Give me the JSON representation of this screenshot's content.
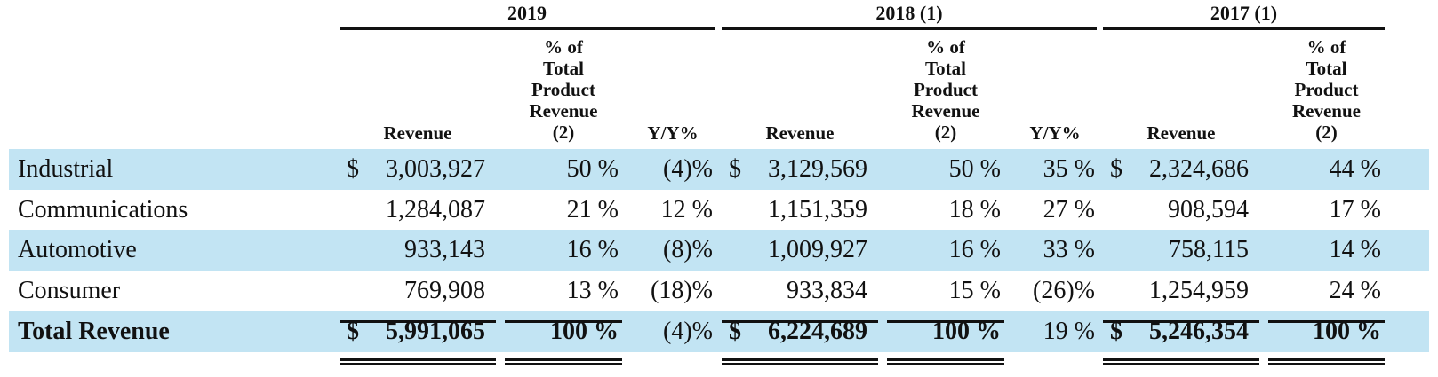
{
  "years": [
    {
      "label": "2019"
    },
    {
      "label": "2018 (1)"
    },
    {
      "label": "2017 (1)"
    }
  ],
  "headers": {
    "revenue": "Revenue",
    "pct_lines": [
      "% of",
      "Total",
      "Product",
      "Revenue",
      "(2)"
    ],
    "yy": "Y/Y%"
  },
  "rows": [
    {
      "label": "Industrial",
      "shaded": true,
      "bold": false,
      "c2019": {
        "dollar": "$",
        "rev": "3,003,927",
        "pct": "50 %",
        "yy": "(4)%"
      },
      "c2018": {
        "dollar": "$",
        "rev": "3,129,569",
        "pct": "50 %",
        "yy": "35 %"
      },
      "c2017": {
        "dollar": "$",
        "rev": "2,324,686",
        "pct": "44 %"
      }
    },
    {
      "label": "Communications",
      "shaded": false,
      "bold": false,
      "c2019": {
        "dollar": "",
        "rev": "1,284,087",
        "pct": "21 %",
        "yy": "12 %"
      },
      "c2018": {
        "dollar": "",
        "rev": "1,151,359",
        "pct": "18 %",
        "yy": "27 %"
      },
      "c2017": {
        "dollar": "",
        "rev": "908,594",
        "pct": "17 %"
      }
    },
    {
      "label": "Automotive",
      "shaded": true,
      "bold": false,
      "c2019": {
        "dollar": "",
        "rev": "933,143",
        "pct": "16 %",
        "yy": "(8)%"
      },
      "c2018": {
        "dollar": "",
        "rev": "1,009,927",
        "pct": "16 %",
        "yy": "33 %"
      },
      "c2017": {
        "dollar": "",
        "rev": "758,115",
        "pct": "14 %"
      }
    },
    {
      "label": "Consumer",
      "shaded": false,
      "bold": false,
      "c2019": {
        "dollar": "",
        "rev": "769,908",
        "pct": "13 %",
        "yy": "(18)%"
      },
      "c2018": {
        "dollar": "",
        "rev": "933,834",
        "pct": "15 %",
        "yy": "(26)%"
      },
      "c2017": {
        "dollar": "",
        "rev": "1,254,959",
        "pct": "24 %"
      }
    },
    {
      "label": "Total Revenue",
      "shaded": true,
      "bold": true,
      "c2019": {
        "dollar": "$",
        "rev": "5,991,065",
        "pct": "100 %",
        "yy": "(4)%"
      },
      "c2018": {
        "dollar": "$",
        "rev": "6,224,689",
        "pct": "100 %",
        "yy": "19 %"
      },
      "c2017": {
        "dollar": "$",
        "rev": "5,246,354",
        "pct": "100 %"
      }
    }
  ]
}
